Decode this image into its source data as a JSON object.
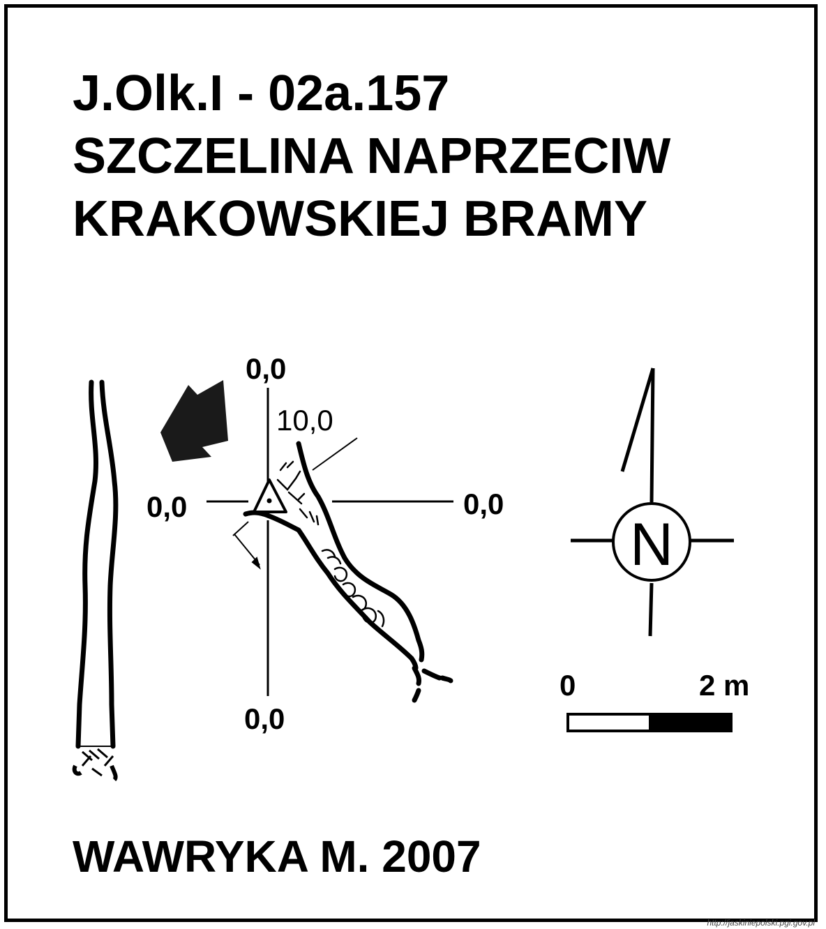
{
  "header": {
    "cave_id": "J.Olk.I - 02a.157",
    "name_line1": "SZCZELINA NAPRZECIW",
    "name_line2": "KRAKOWSKIEJ BRAMY"
  },
  "plan": {
    "coord_top": "0,0",
    "coord_left": "0,0",
    "coord_right": "0,0",
    "coord_bottom": "0,0",
    "depth_label": "10,0"
  },
  "compass": {
    "letter": "N"
  },
  "scale": {
    "start_label": "0",
    "end_label": "2 m"
  },
  "footer": {
    "author": "WAWRYKA M. 2007",
    "url": "http://jaskiniepolski.pgi.gov.pl"
  },
  "colors": {
    "ink": "#000000",
    "background": "#ffffff"
  }
}
